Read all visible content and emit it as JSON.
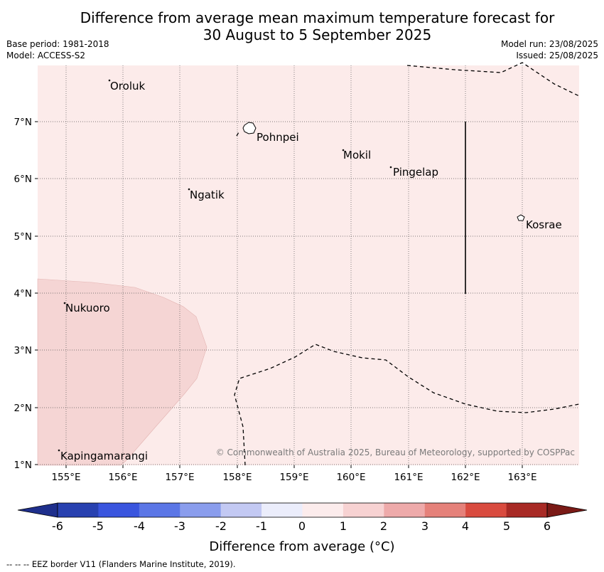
{
  "title_line1": "Difference from average mean maximum temperature forecast for",
  "title_line2": "30 August to 5 September 2025",
  "base_period": "Base period: 1981-2018",
  "model": "Model: ACCESS-S2",
  "model_run": "Model run: 23/08/2025",
  "issued": "Issued: 25/08/2025",
  "copyright": "© Commonwealth of Australia 2025, Bureau of Meteorology, supported by COSPPac",
  "footer": "--  --  -- EEZ border V11 (Flanders Marine Institute, 2019).",
  "colorbar": {
    "title": "Difference from average (°C)",
    "tick_labels": [
      "-6",
      "-5",
      "-4",
      "-3",
      "-2",
      "-1",
      "0",
      "1",
      "2",
      "3",
      "4",
      "5",
      "6"
    ],
    "colors": [
      "#1e2f8c",
      "#2841b0",
      "#3a55de",
      "#5b76e6",
      "#8a9ded",
      "#c3c9f3",
      "#ebedfb",
      "#fcecec",
      "#f7d2d2",
      "#eeaaaa",
      "#e5817a",
      "#d94b3f",
      "#a82a25",
      "#7a1a16"
    ]
  },
  "map": {
    "lon_labels": [
      "155°E",
      "156°E",
      "157°E",
      "158°E",
      "159°E",
      "160°E",
      "161°E",
      "162°E",
      "163°E"
    ],
    "lat_labels": [
      "7°N",
      "6°N",
      "5°N",
      "4°N",
      "3°N",
      "2°N",
      "1°N"
    ],
    "background_anomaly_color": "#fcebea",
    "warm_region_color": "#f5d5d4",
    "places": {
      "oroluk": "Oroluk",
      "pohnpei": "Pohnpei",
      "mokil": "Mokil",
      "pingelap": "Pingelap",
      "ngatik": "Ngatik",
      "kosrae": "Kosrae",
      "nukuoro": "Nukuoro",
      "kapingamarangi": "Kapingamarangi"
    }
  }
}
